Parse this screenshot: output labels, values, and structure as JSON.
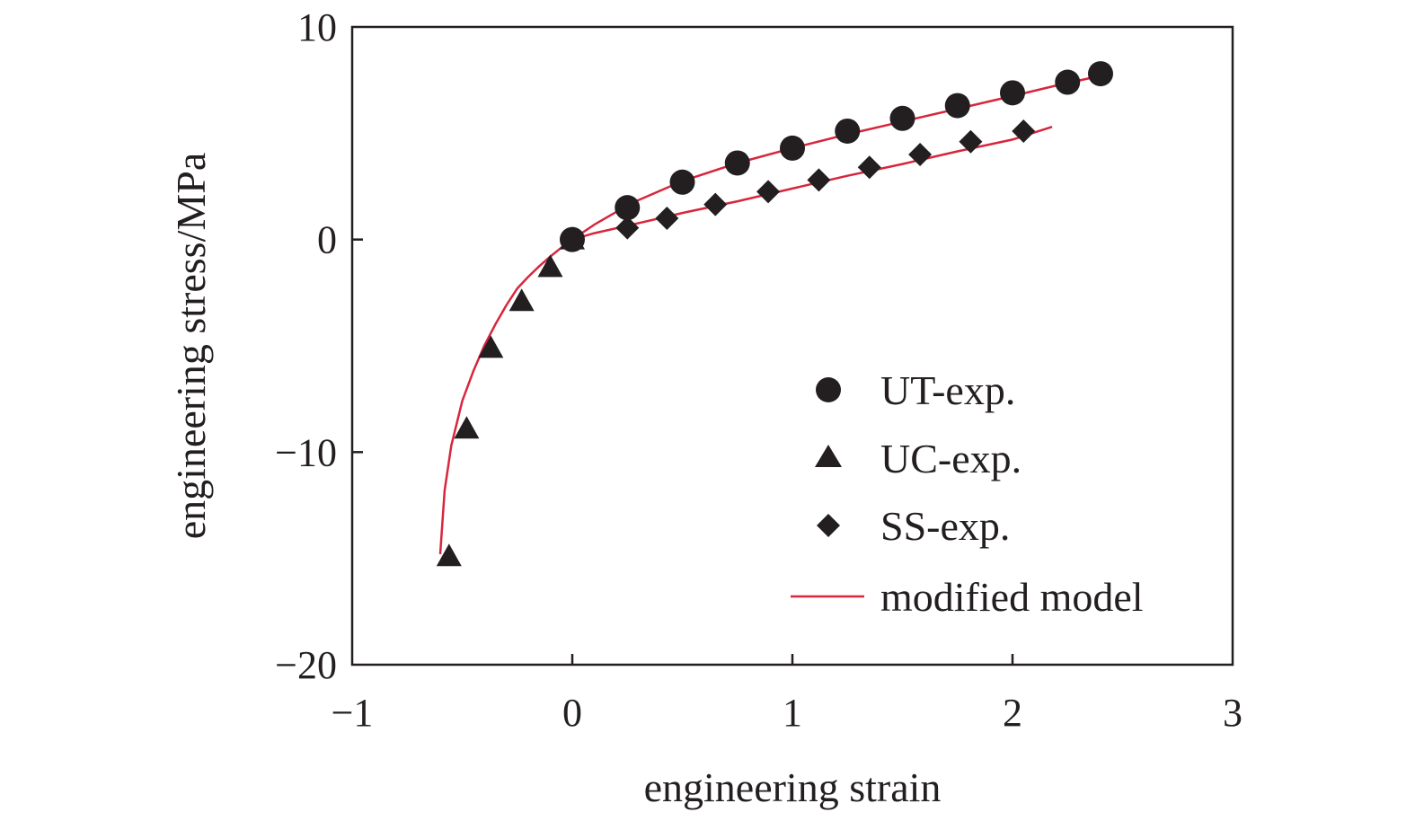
{
  "chart_data": {
    "type": "scatter",
    "xlabel": "engineering strain",
    "ylabel": "engineering stress/MPa",
    "xlim": [
      -1,
      3
    ],
    "ylim": [
      -20,
      10
    ],
    "xticks": [
      -1,
      0,
      1,
      2,
      3
    ],
    "xtick_labels": [
      "−1",
      "0",
      "1",
      "2",
      "3"
    ],
    "yticks": [
      -20,
      -10,
      0,
      10
    ],
    "ytick_labels": [
      "−20",
      "−10",
      "0",
      "10"
    ],
    "grid": false,
    "legend_position": "bottom-right",
    "colors": {
      "markers": "#231f20",
      "model": "#d7263d",
      "axes": "#231f20"
    },
    "series": [
      {
        "name": "UT-exp.",
        "marker": "circle",
        "points": [
          [
            0,
            0
          ],
          [
            0.25,
            1.5
          ],
          [
            0.5,
            2.7
          ],
          [
            0.75,
            3.6
          ],
          [
            1.0,
            4.3
          ],
          [
            1.25,
            5.1
          ],
          [
            1.5,
            5.7
          ],
          [
            1.75,
            6.3
          ],
          [
            2.0,
            6.9
          ],
          [
            2.25,
            7.4
          ],
          [
            2.4,
            7.8
          ]
        ]
      },
      {
        "name": "UC-exp.",
        "marker": "triangle",
        "points": [
          [
            0,
            0
          ],
          [
            -0.1,
            -1.3
          ],
          [
            -0.23,
            -2.9
          ],
          [
            -0.37,
            -5.1
          ],
          [
            -0.48,
            -8.9
          ],
          [
            -0.56,
            -14.9
          ]
        ]
      },
      {
        "name": "SS-exp.",
        "marker": "diamond",
        "points": [
          [
            0.25,
            0.55
          ],
          [
            0.43,
            1.0
          ],
          [
            0.65,
            1.65
          ],
          [
            0.89,
            2.25
          ],
          [
            1.12,
            2.8
          ],
          [
            1.35,
            3.4
          ],
          [
            1.58,
            4.0
          ],
          [
            1.81,
            4.6
          ],
          [
            2.05,
            5.1
          ]
        ]
      },
      {
        "name": "modified model",
        "marker": "line",
        "curves": [
          [
            [
              -0.6,
              -14.8
            ],
            [
              -0.58,
              -11.8
            ],
            [
              -0.55,
              -9.7
            ],
            [
              -0.5,
              -7.6
            ],
            [
              -0.45,
              -6.2
            ],
            [
              -0.4,
              -5.0
            ],
            [
              -0.35,
              -4.0
            ],
            [
              -0.3,
              -3.1
            ],
            [
              -0.25,
              -2.3
            ],
            [
              -0.2,
              -1.75
            ],
            [
              -0.15,
              -1.25
            ],
            [
              -0.1,
              -0.8
            ],
            [
              -0.05,
              -0.38
            ],
            [
              0,
              0
            ],
            [
              0.1,
              0.7
            ],
            [
              0.2,
              1.3
            ],
            [
              0.3,
              1.85
            ],
            [
              0.5,
              2.75
            ],
            [
              0.75,
              3.6
            ],
            [
              1.0,
              4.3
            ],
            [
              1.25,
              4.95
            ],
            [
              1.5,
              5.55
            ],
            [
              1.75,
              6.15
            ],
            [
              2.0,
              6.75
            ],
            [
              2.2,
              7.25
            ],
            [
              2.4,
              7.7
            ]
          ],
          [
            [
              0,
              0
            ],
            [
              0.1,
              0.3
            ],
            [
              0.25,
              0.65
            ],
            [
              0.5,
              1.25
            ],
            [
              0.75,
              1.8
            ],
            [
              1.0,
              2.4
            ],
            [
              1.25,
              3.0
            ],
            [
              1.5,
              3.55
            ],
            [
              1.75,
              4.15
            ],
            [
              2.0,
              4.7
            ],
            [
              2.18,
              5.3
            ]
          ]
        ]
      }
    ]
  }
}
